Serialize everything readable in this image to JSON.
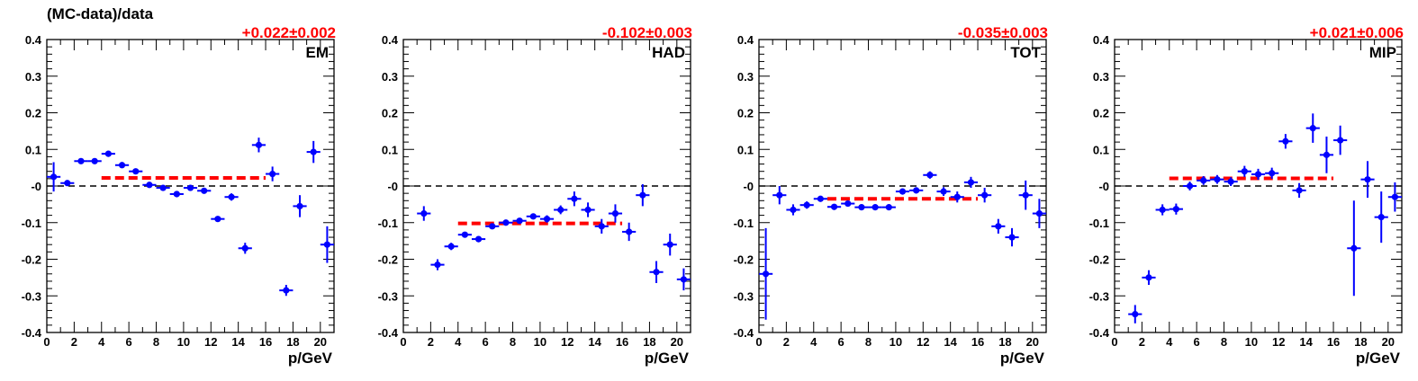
{
  "header": {
    "title": "(MC-data)/data"
  },
  "style": {
    "point_color": "#0000ff",
    "fit_color": "#ff0000",
    "zero_line_color": "#000000",
    "fit_text_color": "#ff0000"
  },
  "chart_data": [
    {
      "type": "scatter",
      "label": "EM",
      "fit_text": "+0.022±0.002",
      "xlabel": "p/GeV",
      "xlim": [
        0,
        21
      ],
      "ylim": [
        -0.4,
        0.4
      ],
      "x_ticks": [
        "0",
        "2",
        "4",
        "6",
        "8",
        "10",
        "12",
        "14",
        "16",
        "18",
        "20"
      ],
      "y_ticks": [
        "-0.4",
        "-0.3",
        "-0.2",
        "-0.1",
        "-0",
        "0.1",
        "0.2",
        "0.3",
        "0.4"
      ],
      "fit": {
        "value": 0.022,
        "x_range": [
          4,
          16
        ]
      },
      "points": [
        {
          "x": 0.5,
          "y": 0.025,
          "err": 0.04
        },
        {
          "x": 1.5,
          "y": 0.008,
          "err": 0.006
        },
        {
          "x": 2.5,
          "y": 0.068,
          "err": 0.003
        },
        {
          "x": 3.5,
          "y": 0.068,
          "err": 0.003
        },
        {
          "x": 4.5,
          "y": 0.088,
          "err": 0.003
        },
        {
          "x": 5.5,
          "y": 0.057,
          "err": 0.003
        },
        {
          "x": 6.5,
          "y": 0.04,
          "err": 0.003
        },
        {
          "x": 7.5,
          "y": 0.003,
          "err": 0.003
        },
        {
          "x": 8.5,
          "y": -0.005,
          "err": 0.003
        },
        {
          "x": 9.5,
          "y": -0.022,
          "err": 0.004
        },
        {
          "x": 10.5,
          "y": -0.005,
          "err": 0.004
        },
        {
          "x": 11.5,
          "y": -0.013,
          "err": 0.005
        },
        {
          "x": 12.5,
          "y": -0.09,
          "err": 0.007
        },
        {
          "x": 13.5,
          "y": -0.03,
          "err": 0.01
        },
        {
          "x": 14.5,
          "y": -0.17,
          "err": 0.015
        },
        {
          "x": 15.5,
          "y": 0.112,
          "err": 0.02
        },
        {
          "x": 16.5,
          "y": 0.033,
          "err": 0.02
        },
        {
          "x": 17.5,
          "y": -0.285,
          "err": 0.015
        },
        {
          "x": 18.5,
          "y": -0.055,
          "err": 0.03
        },
        {
          "x": 19.5,
          "y": 0.093,
          "err": 0.03
        },
        {
          "x": 20.5,
          "y": -0.16,
          "err": 0.05
        }
      ]
    },
    {
      "type": "scatter",
      "label": "HAD",
      "fit_text": "-0.102±0.003",
      "xlabel": "p/GeV",
      "xlim": [
        0,
        21
      ],
      "ylim": [
        -0.4,
        0.4
      ],
      "x_ticks": [
        "0",
        "2",
        "4",
        "6",
        "8",
        "10",
        "12",
        "14",
        "16",
        "18",
        "20"
      ],
      "y_ticks": [
        "-0.4",
        "-0.3",
        "-0.2",
        "-0.1",
        "-0",
        "0.1",
        "0.2",
        "0.3",
        "0.4"
      ],
      "fit": {
        "value": -0.102,
        "x_range": [
          4,
          16
        ]
      },
      "points": [
        {
          "x": 1.5,
          "y": -0.075,
          "err": 0.02
        },
        {
          "x": 2.5,
          "y": -0.215,
          "err": 0.015
        },
        {
          "x": 3.5,
          "y": -0.165,
          "err": 0.01
        },
        {
          "x": 4.5,
          "y": -0.133,
          "err": 0.005
        },
        {
          "x": 5.5,
          "y": -0.145,
          "err": 0.005
        },
        {
          "x": 6.5,
          "y": -0.11,
          "err": 0.005
        },
        {
          "x": 7.5,
          "y": -0.1,
          "err": 0.005
        },
        {
          "x": 8.5,
          "y": -0.095,
          "err": 0.006
        },
        {
          "x": 9.5,
          "y": -0.083,
          "err": 0.008
        },
        {
          "x": 10.5,
          "y": -0.09,
          "err": 0.01
        },
        {
          "x": 11.5,
          "y": -0.065,
          "err": 0.012
        },
        {
          "x": 12.5,
          "y": -0.035,
          "err": 0.02
        },
        {
          "x": 13.5,
          "y": -0.065,
          "err": 0.02
        },
        {
          "x": 14.5,
          "y": -0.11,
          "err": 0.02
        },
        {
          "x": 15.5,
          "y": -0.075,
          "err": 0.025
        },
        {
          "x": 16.5,
          "y": -0.125,
          "err": 0.025
        },
        {
          "x": 17.5,
          "y": -0.025,
          "err": 0.03
        },
        {
          "x": 18.5,
          "y": -0.235,
          "err": 0.03
        },
        {
          "x": 19.5,
          "y": -0.16,
          "err": 0.03
        },
        {
          "x": 20.5,
          "y": -0.255,
          "err": 0.03
        }
      ]
    },
    {
      "type": "scatter",
      "label": "TOT",
      "fit_text": "-0.035±0.003",
      "xlabel": "p/GeV",
      "xlim": [
        0,
        21
      ],
      "ylim": [
        -0.4,
        0.4
      ],
      "x_ticks": [
        "0",
        "2",
        "4",
        "6",
        "8",
        "10",
        "12",
        "14",
        "16",
        "18",
        "20"
      ],
      "y_ticks": [
        "-0.4",
        "-0.3",
        "-0.2",
        "-0.1",
        "-0",
        "0.1",
        "0.2",
        "0.3",
        "0.4"
      ],
      "fit": {
        "value": -0.035,
        "x_range": [
          5,
          16
        ]
      },
      "points": [
        {
          "x": 0.5,
          "y": -0.24,
          "err": 0.125
        },
        {
          "x": 1.5,
          "y": -0.025,
          "err": 0.025
        },
        {
          "x": 2.5,
          "y": -0.065,
          "err": 0.015
        },
        {
          "x": 3.5,
          "y": -0.052,
          "err": 0.01
        },
        {
          "x": 4.5,
          "y": -0.035,
          "err": 0.005
        },
        {
          "x": 5.5,
          "y": -0.057,
          "err": 0.005
        },
        {
          "x": 6.5,
          "y": -0.048,
          "err": 0.005
        },
        {
          "x": 7.5,
          "y": -0.058,
          "err": 0.005
        },
        {
          "x": 8.5,
          "y": -0.058,
          "err": 0.005
        },
        {
          "x": 9.5,
          "y": -0.058,
          "err": 0.005
        },
        {
          "x": 10.5,
          "y": -0.015,
          "err": 0.006
        },
        {
          "x": 11.5,
          "y": -0.012,
          "err": 0.008
        },
        {
          "x": 12.5,
          "y": 0.03,
          "err": 0.01
        },
        {
          "x": 13.5,
          "y": -0.015,
          "err": 0.012
        },
        {
          "x": 14.5,
          "y": -0.03,
          "err": 0.015
        },
        {
          "x": 15.5,
          "y": 0.01,
          "err": 0.015
        },
        {
          "x": 16.5,
          "y": -0.025,
          "err": 0.02
        },
        {
          "x": 17.5,
          "y": -0.11,
          "err": 0.02
        },
        {
          "x": 18.5,
          "y": -0.14,
          "err": 0.025
        },
        {
          "x": 19.5,
          "y": -0.025,
          "err": 0.04
        },
        {
          "x": 20.5,
          "y": -0.075,
          "err": 0.04
        }
      ]
    },
    {
      "type": "scatter",
      "label": "MIP",
      "fit_text": "+0.021±0.006",
      "xlabel": "p/GeV",
      "xlim": [
        0,
        21
      ],
      "ylim": [
        -0.4,
        0.4
      ],
      "x_ticks": [
        "0",
        "2",
        "4",
        "6",
        "8",
        "10",
        "12",
        "14",
        "16",
        "18",
        "20"
      ],
      "y_ticks": [
        "-0.4",
        "-0.3",
        "-0.2",
        "-0.1",
        "-0",
        "0.1",
        "0.2",
        "0.3",
        "0.4"
      ],
      "fit": {
        "value": 0.021,
        "x_range": [
          4,
          16
        ]
      },
      "points": [
        {
          "x": 1.5,
          "y": -0.35,
          "err": 0.025
        },
        {
          "x": 2.5,
          "y": -0.25,
          "err": 0.02
        },
        {
          "x": 3.5,
          "y": -0.065,
          "err": 0.015
        },
        {
          "x": 4.5,
          "y": -0.063,
          "err": 0.015
        },
        {
          "x": 5.5,
          "y": 0.0,
          "err": 0.012
        },
        {
          "x": 6.5,
          "y": 0.015,
          "err": 0.012
        },
        {
          "x": 7.5,
          "y": 0.018,
          "err": 0.012
        },
        {
          "x": 8.5,
          "y": 0.012,
          "err": 0.012
        },
        {
          "x": 9.5,
          "y": 0.04,
          "err": 0.015
        },
        {
          "x": 10.5,
          "y": 0.032,
          "err": 0.015
        },
        {
          "x": 11.5,
          "y": 0.035,
          "err": 0.015
        },
        {
          "x": 12.5,
          "y": 0.122,
          "err": 0.02
        },
        {
          "x": 13.5,
          "y": -0.012,
          "err": 0.02
        },
        {
          "x": 14.5,
          "y": 0.158,
          "err": 0.04
        },
        {
          "x": 15.5,
          "y": 0.085,
          "err": 0.05
        },
        {
          "x": 16.5,
          "y": 0.125,
          "err": 0.04
        },
        {
          "x": 17.5,
          "y": -0.17,
          "err": 0.13
        },
        {
          "x": 18.5,
          "y": 0.018,
          "err": 0.05
        },
        {
          "x": 19.5,
          "y": -0.085,
          "err": 0.07
        },
        {
          "x": 20.5,
          "y": -0.03,
          "err": 0.04
        }
      ]
    }
  ]
}
